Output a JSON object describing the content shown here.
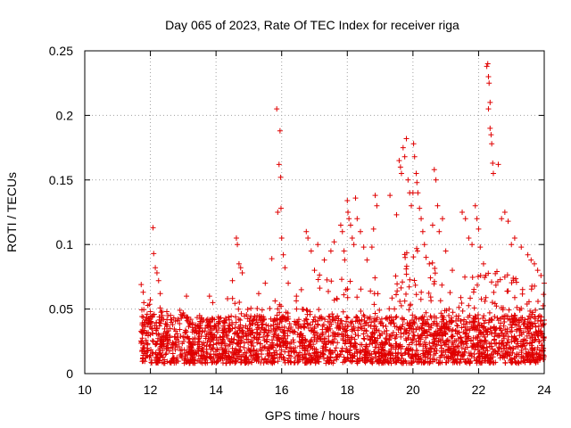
{
  "chart_data": {
    "type": "scatter",
    "title": "Day 065 of 2023, Rate Of TEC Index for receiver riga",
    "xlabel": "GPS time / hours",
    "ylabel": "ROTI / TECUs",
    "xlim": [
      10,
      24
    ],
    "ylim": [
      0,
      0.25
    ],
    "x_ticks": [
      "10",
      "12",
      "14",
      "16",
      "18",
      "20",
      "22",
      "24"
    ],
    "y_ticks": [
      "0",
      "0.05",
      "0.1",
      "0.15",
      "0.2",
      "0.25"
    ],
    "grid": true,
    "marker": "plus",
    "color": "#e00000",
    "series": [
      {
        "name": "ROTI",
        "points": [
          [
            11.72,
            0.069
          ],
          [
            11.78,
            0.063
          ],
          [
            11.8,
            0.055
          ],
          [
            11.9,
            0.046
          ],
          [
            12.0,
            0.048
          ],
          [
            12.08,
            0.113
          ],
          [
            12.1,
            0.093
          ],
          [
            12.15,
            0.082
          ],
          [
            12.2,
            0.078
          ],
          [
            12.25,
            0.072
          ],
          [
            12.3,
            0.062
          ],
          [
            12.5,
            0.048
          ],
          [
            12.9,
            0.049
          ],
          [
            13.0,
            0.047
          ],
          [
            13.1,
            0.06
          ],
          [
            13.5,
            0.045
          ],
          [
            13.8,
            0.06
          ],
          [
            13.9,
            0.055
          ],
          [
            14.35,
            0.058
          ],
          [
            14.5,
            0.072
          ],
          [
            14.62,
            0.105
          ],
          [
            14.65,
            0.1
          ],
          [
            14.7,
            0.085
          ],
          [
            14.75,
            0.082
          ],
          [
            14.8,
            0.078
          ],
          [
            15.3,
            0.062
          ],
          [
            15.5,
            0.07
          ],
          [
            15.7,
            0.089
          ],
          [
            15.85,
            0.205
          ],
          [
            15.95,
            0.188
          ],
          [
            15.92,
            0.162
          ],
          [
            15.97,
            0.152
          ],
          [
            15.98,
            0.128
          ],
          [
            15.88,
            0.125
          ],
          [
            16.0,
            0.105
          ],
          [
            16.05,
            0.092
          ],
          [
            16.1,
            0.082
          ],
          [
            16.2,
            0.07
          ],
          [
            16.45,
            0.06
          ],
          [
            16.6,
            0.065
          ],
          [
            16.75,
            0.11
          ],
          [
            16.8,
            0.105
          ],
          [
            16.9,
            0.095
          ],
          [
            17.0,
            0.08
          ],
          [
            17.1,
            0.1
          ],
          [
            17.3,
            0.088
          ],
          [
            17.5,
            0.095
          ],
          [
            17.6,
            0.102
          ],
          [
            17.8,
            0.115
          ],
          [
            17.85,
            0.11
          ],
          [
            17.9,
            0.095
          ],
          [
            17.92,
            0.088
          ],
          [
            18.0,
            0.134
          ],
          [
            18.02,
            0.125
          ],
          [
            18.05,
            0.12
          ],
          [
            18.1,
            0.115
          ],
          [
            18.15,
            0.105
          ],
          [
            18.2,
            0.1
          ],
          [
            18.25,
            0.136
          ],
          [
            18.3,
            0.12
          ],
          [
            18.4,
            0.11
          ],
          [
            18.5,
            0.098
          ],
          [
            18.6,
            0.088
          ],
          [
            18.75,
            0.098
          ],
          [
            18.8,
            0.112
          ],
          [
            18.85,
            0.138
          ],
          [
            18.9,
            0.13
          ],
          [
            19.3,
            0.138
          ],
          [
            19.5,
            0.123
          ],
          [
            19.58,
            0.165
          ],
          [
            19.62,
            0.16
          ],
          [
            19.65,
            0.155
          ],
          [
            19.7,
            0.175
          ],
          [
            19.75,
            0.168
          ],
          [
            19.8,
            0.182
          ],
          [
            19.85,
            0.15
          ],
          [
            19.9,
            0.14
          ],
          [
            19.95,
            0.13
          ],
          [
            20.0,
            0.14
          ],
          [
            20.02,
            0.178
          ],
          [
            20.05,
            0.168
          ],
          [
            20.1,
            0.155
          ],
          [
            20.12,
            0.148
          ],
          [
            20.15,
            0.14
          ],
          [
            20.2,
            0.128
          ],
          [
            20.25,
            0.12
          ],
          [
            20.3,
            0.11
          ],
          [
            20.35,
            0.1
          ],
          [
            20.4,
            0.09
          ],
          [
            20.5,
            0.085
          ],
          [
            20.6,
            0.115
          ],
          [
            20.65,
            0.158
          ],
          [
            20.7,
            0.15
          ],
          [
            20.75,
            0.13
          ],
          [
            20.8,
            0.11
          ],
          [
            20.9,
            0.12
          ],
          [
            21.0,
            0.095
          ],
          [
            21.2,
            0.08
          ],
          [
            21.5,
            0.125
          ],
          [
            21.6,
            0.12
          ],
          [
            21.7,
            0.105
          ],
          [
            21.8,
            0.1
          ],
          [
            21.9,
            0.13
          ],
          [
            21.95,
            0.12
          ],
          [
            22.0,
            0.112
          ],
          [
            22.05,
            0.098
          ],
          [
            22.15,
            0.085
          ],
          [
            22.25,
            0.238
          ],
          [
            22.28,
            0.24
          ],
          [
            22.3,
            0.23
          ],
          [
            22.32,
            0.225
          ],
          [
            22.35,
            0.21
          ],
          [
            22.3,
            0.205
          ],
          [
            22.35,
            0.19
          ],
          [
            22.38,
            0.185
          ],
          [
            22.4,
            0.178
          ],
          [
            22.43,
            0.163
          ],
          [
            22.45,
            0.155
          ],
          [
            22.6,
            0.162
          ],
          [
            22.7,
            0.12
          ],
          [
            22.8,
            0.125
          ],
          [
            22.9,
            0.118
          ],
          [
            23.0,
            0.1
          ],
          [
            23.1,
            0.105
          ],
          [
            23.3,
            0.098
          ],
          [
            23.5,
            0.092
          ],
          [
            23.6,
            0.088
          ],
          [
            23.7,
            0.085
          ],
          [
            23.8,
            0.08
          ],
          [
            23.9,
            0.076
          ],
          [
            24.0,
            0.07
          ]
        ],
        "density_envelope": {
          "x_range": [
            11.7,
            24.0
          ],
          "baseline_range": [
            0.008,
            0.045
          ],
          "upper_envelope": [
            [
              11.7,
              0.05
            ],
            [
              12.0,
              0.06
            ],
            [
              12.5,
              0.045
            ],
            [
              13.0,
              0.046
            ],
            [
              13.5,
              0.042
            ],
            [
              14.0,
              0.045
            ],
            [
              14.5,
              0.06
            ],
            [
              15.0,
              0.05
            ],
            [
              15.5,
              0.055
            ],
            [
              16.0,
              0.06
            ],
            [
              16.5,
              0.06
            ],
            [
              17.0,
              0.075
            ],
            [
              17.5,
              0.08
            ],
            [
              18.0,
              0.085
            ],
            [
              18.5,
              0.08
            ],
            [
              19.0,
              0.075
            ],
            [
              19.5,
              0.09
            ],
            [
              20.0,
              0.1
            ],
            [
              20.5,
              0.09
            ],
            [
              21.0,
              0.075
            ],
            [
              21.5,
              0.075
            ],
            [
              22.0,
              0.08
            ],
            [
              22.5,
              0.085
            ],
            [
              23.0,
              0.075
            ],
            [
              23.5,
              0.07
            ],
            [
              24.0,
              0.065
            ]
          ]
        }
      }
    ]
  }
}
